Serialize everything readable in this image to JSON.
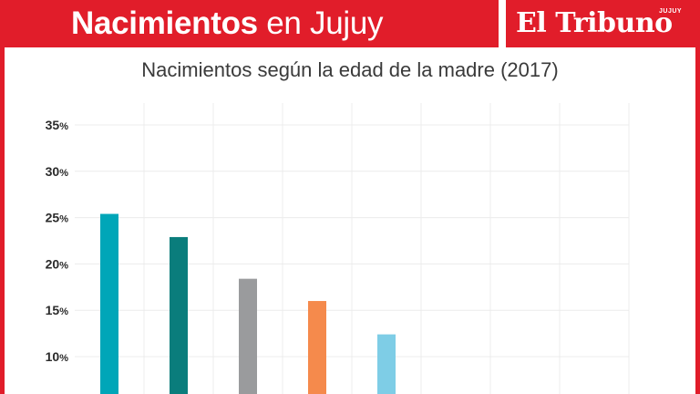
{
  "header": {
    "title_bold": "Nacimientos",
    "title_light": "en Jujuy",
    "logo_text": "El Tribuno",
    "logo_tag": "JUJUY",
    "brand_color": "#e11d2a"
  },
  "chart_data": {
    "type": "bar",
    "title": "Nacimientos según la edad de la madre (2017)",
    "xlabel": "",
    "ylabel": "",
    "ylim": [
      10,
      35
    ],
    "yticks": [
      "10",
      "15",
      "20",
      "25",
      "30",
      "35"
    ],
    "tick_suffix": "%",
    "grid": true,
    "values": [
      25.4,
      22.9,
      18.4,
      16.0,
      12.4
    ],
    "colors": [
      "#00a6b8",
      "#0a7d7c",
      "#9a9b9d",
      "#f58a4c",
      "#7ecde6"
    ],
    "num_slots": 8
  }
}
